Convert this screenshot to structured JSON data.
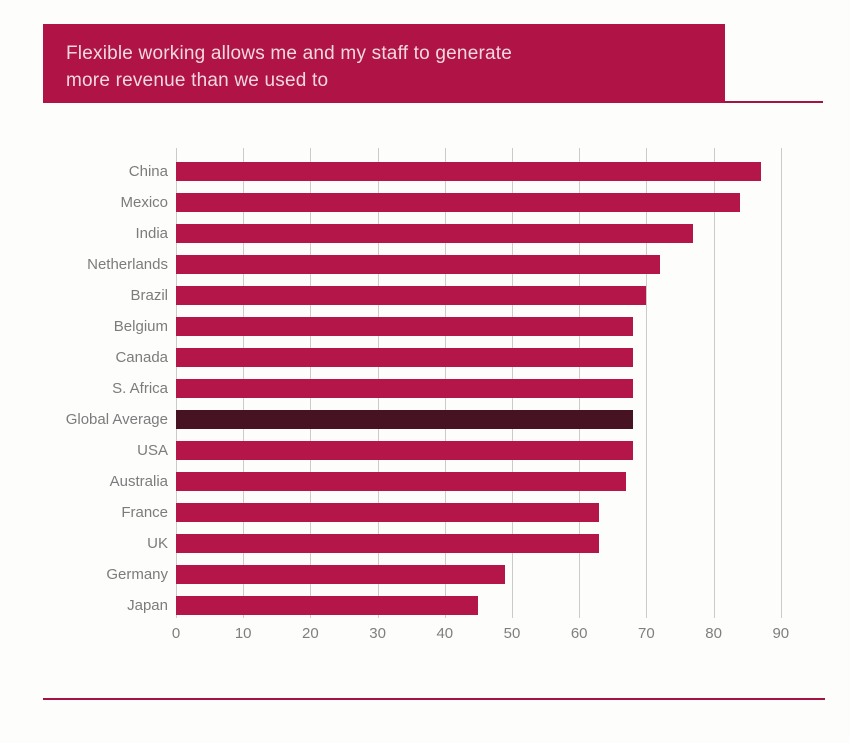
{
  "header": {
    "title_line1": "Flexible working allows me and my staff to generate",
    "title_line2": "more revenue than we used to"
  },
  "chart_data": {
    "type": "bar",
    "orientation": "horizontal",
    "title": "Flexible working allows me and my staff to generate more revenue than we used to",
    "categories": [
      "China",
      "Mexico",
      "India",
      "Netherlands",
      "Brazil",
      "Belgium",
      "Canada",
      "S. Africa",
      "Global Average",
      "USA",
      "Australia",
      "France",
      "UK",
      "Germany",
      "Japan"
    ],
    "values": [
      87,
      84,
      77,
      72,
      70,
      68,
      68,
      68,
      68,
      68,
      67,
      63,
      63,
      49,
      45
    ],
    "highlight_category": "Global Average",
    "xlabel": "",
    "ylabel": "",
    "xlim": [
      0,
      92
    ],
    "xticks": [
      0,
      10,
      20,
      30,
      40,
      50,
      60,
      70,
      80,
      90
    ],
    "grid": true,
    "legend": false,
    "bar_color": "#b4164a",
    "highlight_color": "#471221"
  },
  "colors": {
    "banner_background": "#b01346",
    "banner_text": "#f2d8e1",
    "rule_line": "#a41345",
    "gridline": "#cbcbcb",
    "label_text": "#7c7c7c",
    "page_background": "#fdfdfc"
  }
}
